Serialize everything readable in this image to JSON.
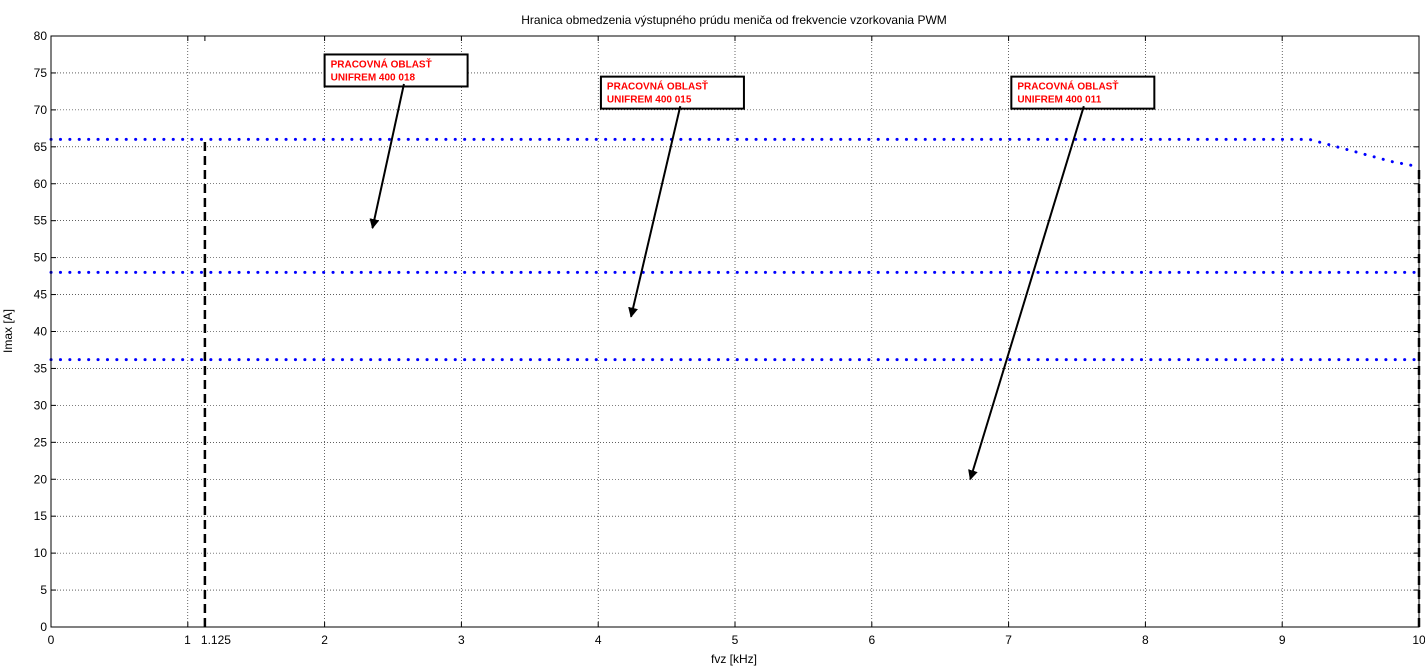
{
  "chart_data": {
    "type": "line",
    "title": "Hranica obmedzenia výstupného prúdu meniča od frekvencie vzorkovania PWM",
    "xlabel": "fvz [kHz]",
    "ylabel": "Imax [A]",
    "xlim": [
      0,
      10
    ],
    "ylim": [
      0,
      80
    ],
    "grid": true,
    "x_ticks": [
      0,
      1,
      1.125,
      2,
      3,
      4,
      5,
      6,
      7,
      8,
      9,
      10
    ],
    "x_tick_labels": [
      "0",
      "1",
      "1.125",
      "2",
      "3",
      "4",
      "5",
      "6",
      "7",
      "8",
      "9",
      "10"
    ],
    "y_ticks": [
      0,
      5,
      10,
      15,
      20,
      25,
      30,
      35,
      40,
      45,
      50,
      55,
      60,
      65,
      70,
      75,
      80
    ],
    "y_tick_labels": [
      "0",
      "5",
      "10",
      "15",
      "20",
      "25",
      "30",
      "35",
      "40",
      "45",
      "50",
      "55",
      "60",
      "65",
      "70",
      "75",
      "80"
    ],
    "series": [
      {
        "style": "dotted",
        "color": "#0000ff",
        "x": [
          0,
          9.2,
          9.4,
          9.6,
          9.8,
          10
        ],
        "y": [
          66,
          66,
          65,
          64,
          63,
          62.3
        ]
      },
      {
        "style": "dotted",
        "color": "#0000ff",
        "x": [
          0,
          10
        ],
        "y": [
          48,
          48
        ]
      },
      {
        "style": "dotted",
        "color": "#0000ff",
        "x": [
          0,
          10
        ],
        "y": [
          36.2,
          36.2
        ]
      },
      {
        "style": "dashed",
        "color": "#000000",
        "x": [
          1.125,
          1.125
        ],
        "y": [
          0,
          66
        ]
      },
      {
        "style": "dashed",
        "color": "#000000",
        "x": [
          10,
          10
        ],
        "y": [
          0,
          62.3
        ]
      }
    ],
    "annotations": [
      {
        "lines": [
          "PRACOVNÁ OBLASŤ",
          "UNIFREM 400 018"
        ],
        "box_x": 2.0,
        "box_y": 77.5,
        "arrow_from": [
          2.58,
          73.5
        ],
        "arrow_to": [
          2.35,
          54
        ]
      },
      {
        "lines": [
          "PRACOVNÁ OBLASŤ",
          "UNIFREM 400 015"
        ],
        "box_x": 4.02,
        "box_y": 74.5,
        "arrow_from": [
          4.6,
          70.5
        ],
        "arrow_to": [
          4.24,
          42
        ]
      },
      {
        "lines": [
          "PRACOVNÁ OBLASŤ",
          "UNIFREM 400 011"
        ],
        "box_x": 7.02,
        "box_y": 74.5,
        "arrow_from": [
          7.55,
          70.5
        ],
        "arrow_to": [
          6.72,
          20
        ]
      }
    ]
  }
}
